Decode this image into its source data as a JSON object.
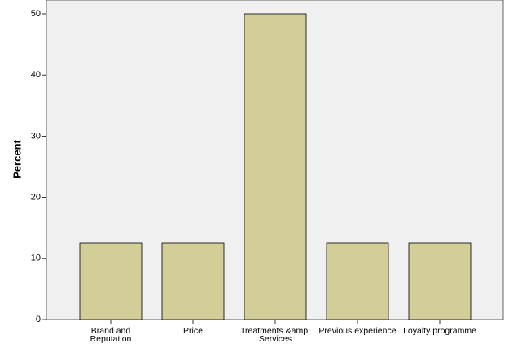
{
  "chart_data": {
    "type": "bar",
    "y_label": "Percent",
    "categories": [
      "Brand and Reputation",
      "Price",
      "Treatments &amp; Services",
      "Previous experience",
      "Loyalty programme"
    ],
    "values": [
      12.5,
      12.5,
      50,
      12.5,
      12.5
    ],
    "color": "#d3ce97",
    "ylim": [
      0,
      52.26
    ],
    "yticks": [
      0,
      10,
      20,
      30,
      40,
      50
    ],
    "grid": false
  }
}
